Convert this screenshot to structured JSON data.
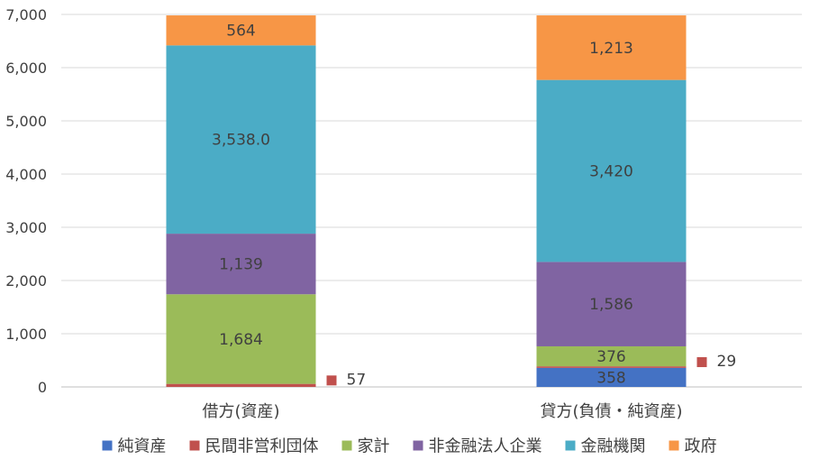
{
  "chart_data": {
    "type": "bar",
    "stacked": true,
    "categories": [
      "借方(資産)",
      "貸方(負債・純資産)"
    ],
    "series": [
      {
        "name": "純資産",
        "color": "#4472C4",
        "values": [
          0,
          358
        ],
        "labels": [
          "",
          "358"
        ]
      },
      {
        "name": "民間非営利団体",
        "color": "#C0504D",
        "values": [
          57,
          29
        ],
        "labels": [
          "57",
          "29"
        ]
      },
      {
        "name": "家計",
        "color": "#9BBB59",
        "values": [
          1684,
          376
        ],
        "labels": [
          "1,684",
          "376"
        ]
      },
      {
        "name": "非金融法人企業",
        "color": "#8064A2",
        "values": [
          1139,
          1586
        ],
        "labels": [
          "1,139",
          "1,586"
        ]
      },
      {
        "name": "金融機関",
        "color": "#4BACC6",
        "values": [
          3538.0,
          3420
        ],
        "labels": [
          "3,538.0",
          "3,420"
        ]
      },
      {
        "name": "政府",
        "color": "#F79646",
        "values": [
          564,
          1213
        ],
        "labels": [
          "564",
          "1,213"
        ]
      }
    ],
    "ylim": [
      0,
      7000
    ],
    "yticks": [
      0,
      1000,
      2000,
      3000,
      4000,
      5000,
      6000,
      7000
    ],
    "ytick_labels": [
      "0",
      "1,000",
      "2,000",
      "3,000",
      "4,000",
      "5,000",
      "6,000",
      "7,000"
    ],
    "grid": true,
    "legend_position": "bottom"
  }
}
